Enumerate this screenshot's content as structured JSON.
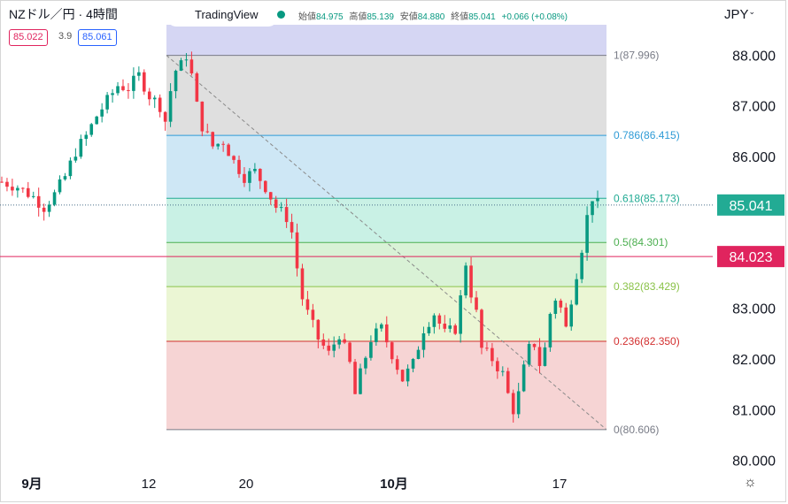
{
  "header": {
    "symbol": "NZドル／円 · 4時間",
    "bid": "85.022",
    "spread": "3.9",
    "ask": "85.061",
    "brand": "TradingView",
    "ohlc": {
      "open_label": "始値",
      "open": "84.975",
      "high_label": "高値",
      "high": "85.139",
      "low_label": "安値",
      "low": "84.880",
      "close_label": "終値",
      "close": "85.041",
      "change": "+0.066 (+0.08%)"
    },
    "currency_menu": "JPY",
    "settings_icon": "gear-icon"
  },
  "chart_data": {
    "type": "candlestick",
    "x_tick_labels": [
      "9月",
      "12",
      "20",
      "10月",
      "17"
    ],
    "y_tick_labels": [
      "88.000",
      "87.000",
      "86.000",
      "85.000",
      "84.000",
      "83.000",
      "82.000",
      "81.000",
      "80.000"
    ],
    "ylim": [
      79.8,
      88.6
    ],
    "last_price": "85.041",
    "marker_price": "84.023",
    "fibonacci": [
      {
        "level": "1",
        "price": "87.996",
        "color": "#787b86",
        "fill": "#d9d9d9"
      },
      {
        "level": "0.786",
        "price": "86.415",
        "color": "#2e9bd6",
        "fill": "#c6e3f3"
      },
      {
        "level": "0.618",
        "price": "85.173",
        "color": "#22ab94",
        "fill": "#bfeee0"
      },
      {
        "level": "0.5",
        "price": "84.301",
        "color": "#4caf50",
        "fill": "#d2f0cf"
      },
      {
        "level": "0.382",
        "price": "83.429",
        "color": "#8bc34a",
        "fill": "#e8f5cd"
      },
      {
        "level": "0.236",
        "price": "82.350",
        "color": "#d32f2f",
        "fill": "#f5cccc"
      },
      {
        "level": "0",
        "price": "80.606",
        "color": "#787b86",
        "fill": "#f5cccc"
      }
    ],
    "price_path": [
      [
        0,
        85.5
      ],
      [
        3,
        85.4
      ],
      [
        6,
        85.2
      ],
      [
        8,
        85.0
      ],
      [
        10,
        85.25
      ],
      [
        12,
        85.6
      ],
      [
        14,
        86.1
      ],
      [
        16,
        86.4
      ],
      [
        18,
        86.8
      ],
      [
        20,
        87.1
      ],
      [
        22,
        87.4
      ],
      [
        24,
        87.35
      ],
      [
        26,
        87.6
      ],
      [
        28,
        87.2
      ],
      [
        30,
        87.0
      ],
      [
        31,
        86.7
      ],
      [
        32,
        87.3
      ],
      [
        33,
        87.7
      ],
      [
        34,
        87.8
      ],
      [
        35,
        88.0
      ],
      [
        36,
        87.6
      ],
      [
        37,
        87.0
      ],
      [
        38,
        86.6
      ],
      [
        40,
        86.2
      ],
      [
        42,
        86.3
      ],
      [
        44,
        85.9
      ],
      [
        46,
        85.6
      ],
      [
        48,
        85.7
      ],
      [
        50,
        85.4
      ],
      [
        52,
        85.0
      ],
      [
        54,
        84.8
      ],
      [
        55,
        84.5
      ],
      [
        56,
        83.8
      ],
      [
        57,
        83.2
      ],
      [
        58,
        82.9
      ],
      [
        60,
        82.4
      ],
      [
        62,
        82.1
      ],
      [
        64,
        82.5
      ],
      [
        66,
        81.9
      ],
      [
        67,
        81.3
      ],
      [
        68,
        81.7
      ],
      [
        70,
        82.4
      ],
      [
        72,
        82.6
      ],
      [
        74,
        82.1
      ],
      [
        76,
        81.6
      ],
      [
        78,
        81.9
      ],
      [
        80,
        82.6
      ],
      [
        82,
        82.9
      ],
      [
        84,
        82.5
      ],
      [
        86,
        82.6
      ],
      [
        87,
        83.2
      ],
      [
        88,
        83.9
      ],
      [
        89,
        83.3
      ],
      [
        90,
        82.9
      ],
      [
        91,
        82.2
      ],
      [
        93,
        82.0
      ],
      [
        95,
        81.7
      ],
      [
        96,
        81.3
      ],
      [
        97,
        81.0
      ],
      [
        98,
        81.3
      ],
      [
        99,
        81.8
      ],
      [
        100,
        82.2
      ],
      [
        101,
        82.3
      ],
      [
        102,
        81.9
      ],
      [
        103,
        82.2
      ],
      [
        104,
        82.9
      ],
      [
        105,
        83.2
      ],
      [
        106,
        83.0
      ],
      [
        107,
        82.6
      ],
      [
        108,
        83.2
      ],
      [
        109,
        83.7
      ],
      [
        110,
        84.2
      ],
      [
        111,
        84.8
      ],
      [
        112,
        85.2
      ],
      [
        113,
        85.05
      ]
    ],
    "candle_count": 114
  }
}
